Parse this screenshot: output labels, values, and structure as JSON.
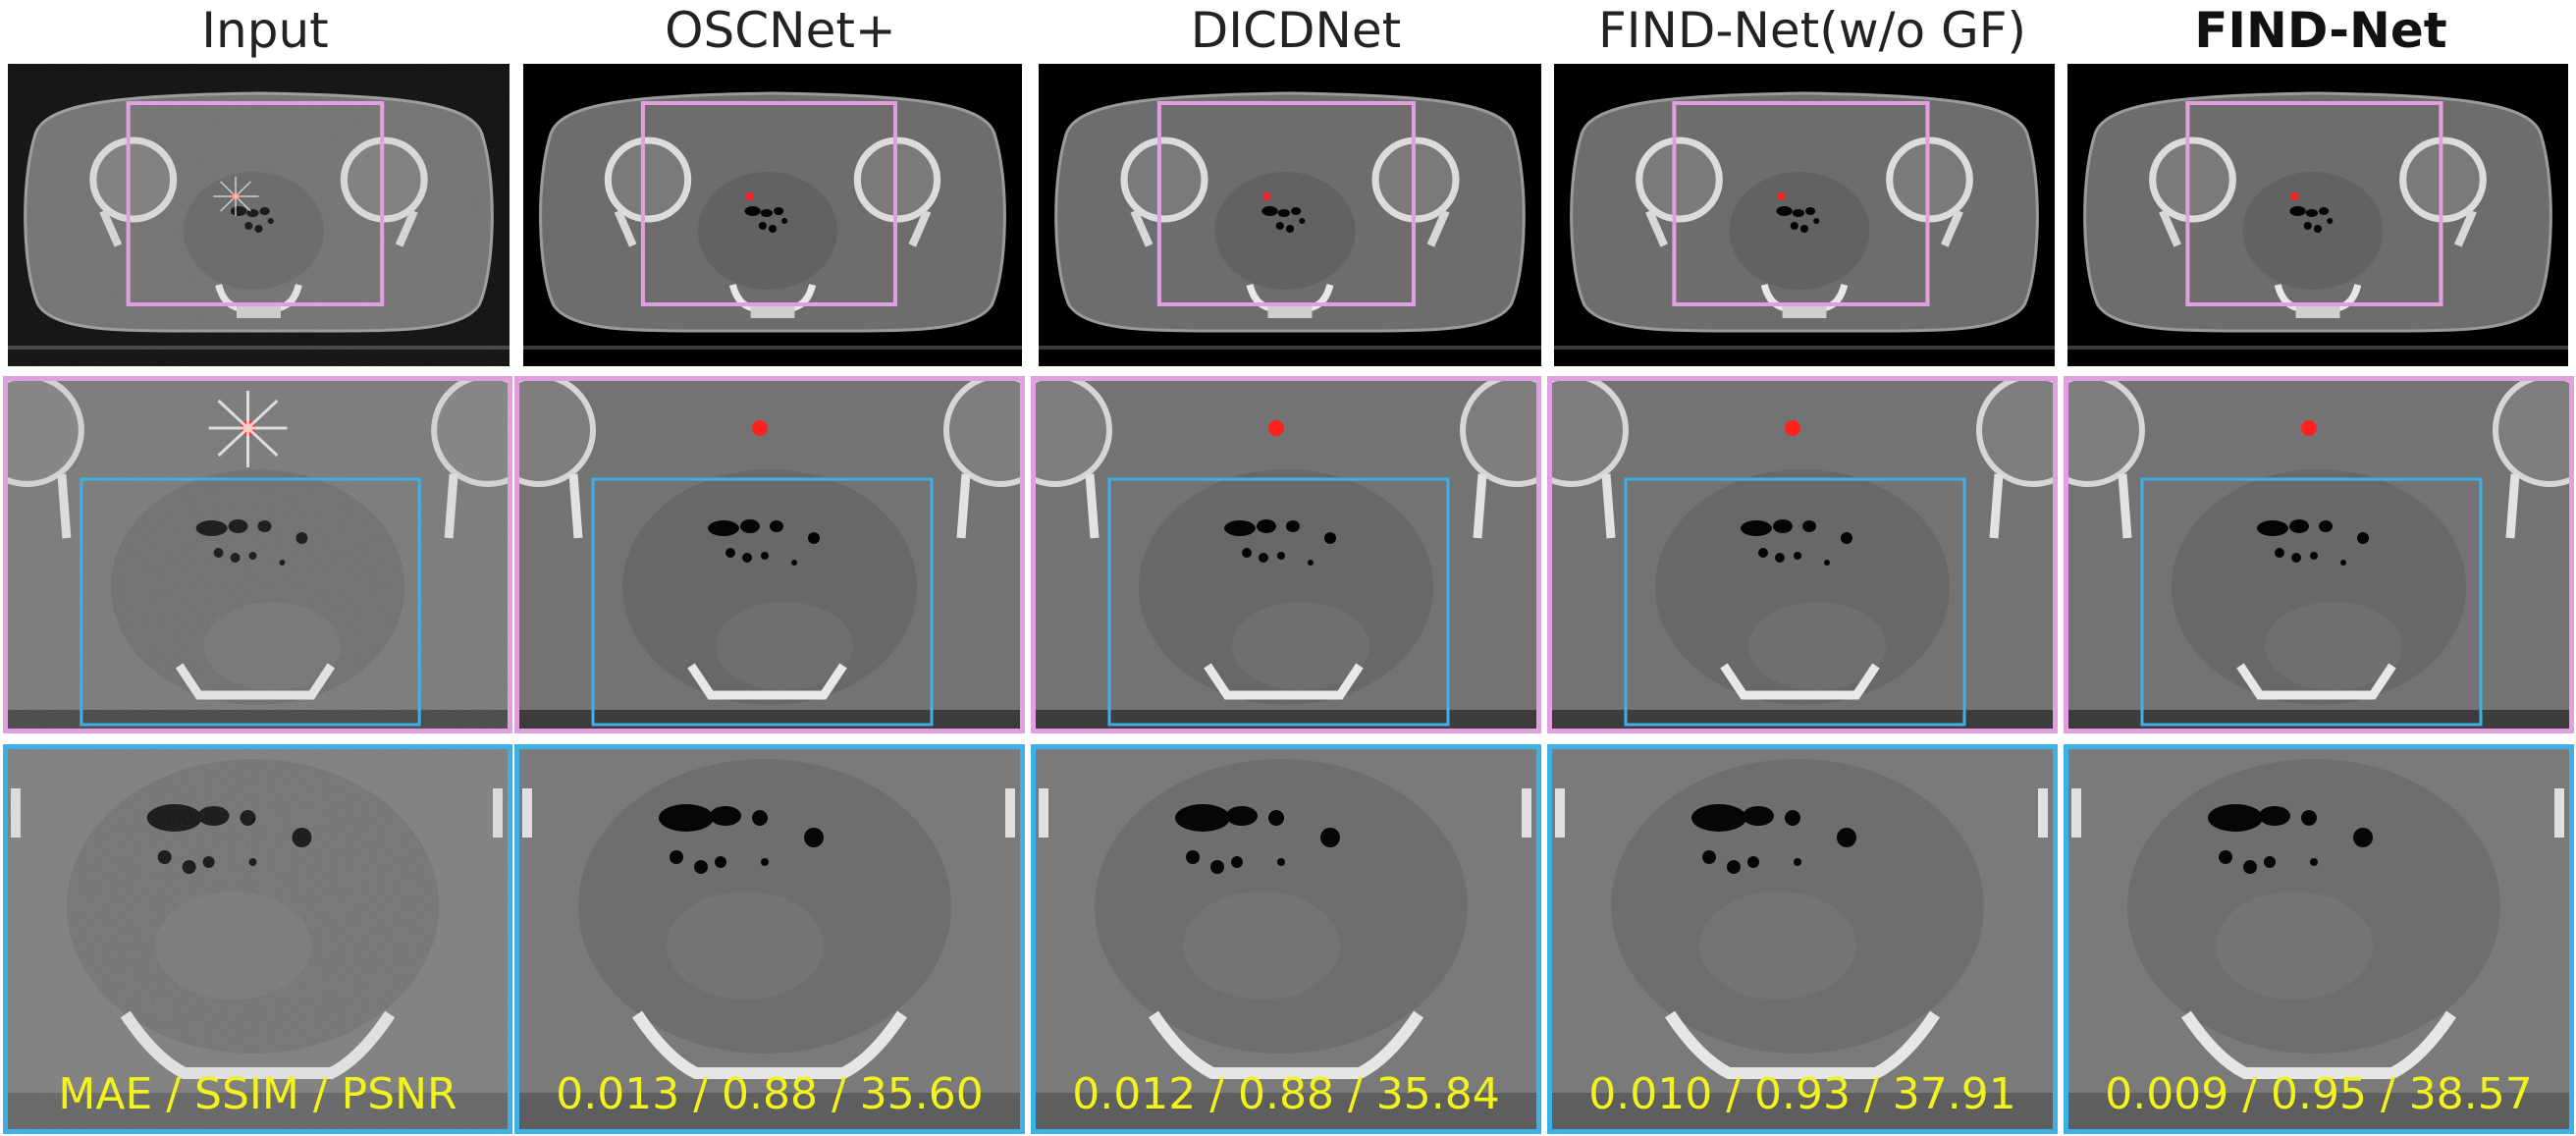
{
  "columns": [
    {
      "title": "Input",
      "metric": "MAE / SSIM / PSNR",
      "bold": false,
      "noisy": true
    },
    {
      "title": "OSCNet+",
      "metric": "0.013 / 0.88 / 35.60",
      "bold": false,
      "noisy": false
    },
    {
      "title": "DICDNet",
      "metric": "0.012 / 0.88 / 35.84",
      "bold": false,
      "noisy": false
    },
    {
      "title": "FIND-Net(w/o GF)",
      "metric": "0.010 / 0.93 / 37.91",
      "bold": false,
      "noisy": false
    },
    {
      "title": "FIND-Net",
      "metric": "0.009 / 0.95 / 38.57",
      "bold": true,
      "noisy": false
    }
  ],
  "colors": {
    "zoom1_box": "#e29fe0",
    "zoom2_box": "#3db0e8",
    "metal_marker": "#ff2020",
    "metric_text": "#f2f21c"
  }
}
